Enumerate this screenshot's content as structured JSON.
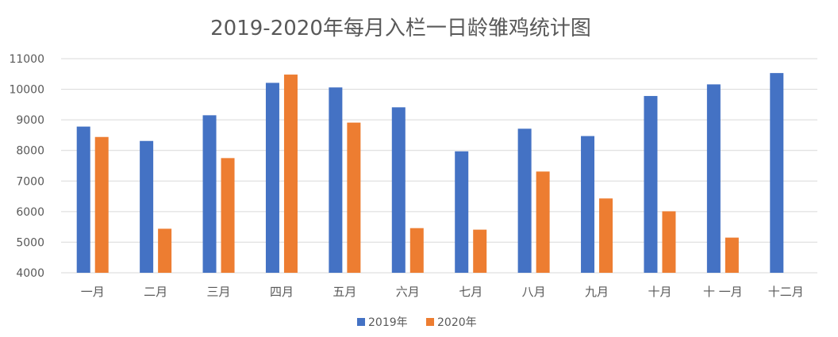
{
  "chart_data": {
    "type": "bar",
    "title": "2019-2020年每月入栏一日龄雏鸡统计图",
    "xlabel": "",
    "ylabel": "",
    "ylim": [
      4000,
      11000
    ],
    "yticks": [
      4000,
      5000,
      6000,
      7000,
      8000,
      9000,
      10000,
      11000
    ],
    "grid": true,
    "legend_position": "bottom",
    "categories": [
      "一月",
      "二月",
      "三月",
      "四月",
      "五月",
      "六月",
      "七月",
      "八月",
      "九月",
      "十月",
      "十 一月",
      "十二月"
    ],
    "series": [
      {
        "name": "2019年",
        "color": "#4472C4",
        "values": [
          8780,
          8310,
          9150,
          10210,
          10060,
          9410,
          7970,
          8710,
          8470,
          9780,
          10160,
          10530
        ]
      },
      {
        "name": "2020年",
        "color": "#ED7D31",
        "values": [
          8440,
          5440,
          7750,
          10480,
          8910,
          5460,
          5410,
          7310,
          6430,
          6010,
          5150,
          null
        ]
      }
    ]
  }
}
